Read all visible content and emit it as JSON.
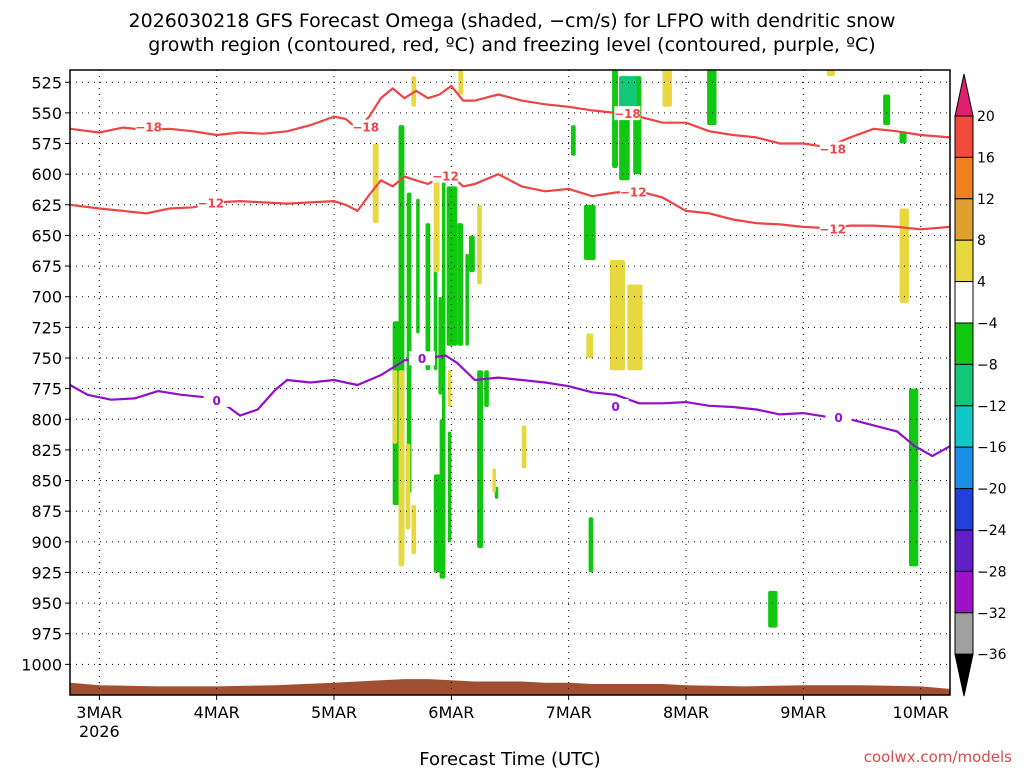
{
  "chart_data": {
    "type": "heatmap",
    "title_lines": [
      "2026030218 GFS Forecast Omega (shaded, −cm/s) for LFPO with dendritic snow",
      "growth region (contoured, red, ºC) and freezing level (contoured, purple, ºC)"
    ],
    "xlabel": "Forecast Time (UTC)",
    "credit": "coolwx.com/models",
    "x_ticks": [
      {
        "day": 3,
        "label": "3MAR",
        "sub": "2026"
      },
      {
        "day": 4,
        "label": "4MAR",
        "sub": ""
      },
      {
        "day": 5,
        "label": "5MAR",
        "sub": ""
      },
      {
        "day": 6,
        "label": "6MAR",
        "sub": ""
      },
      {
        "day": 7,
        "label": "7MAR",
        "sub": ""
      },
      {
        "day": 8,
        "label": "8MAR",
        "sub": ""
      },
      {
        "day": 9,
        "label": "9MAR",
        "sub": ""
      },
      {
        "day": 10,
        "label": "10MAR",
        "sub": ""
      }
    ],
    "xlim": [
      2.75,
      10.25
    ],
    "ylim": [
      1025,
      515
    ],
    "y_ticks": [
      525,
      550,
      575,
      600,
      625,
      650,
      675,
      700,
      725,
      750,
      775,
      800,
      825,
      850,
      875,
      900,
      925,
      950,
      975,
      1000
    ],
    "y_tick_labels": [
      "525",
      "550",
      "575",
      "600",
      "625",
      "650",
      "675",
      "700",
      "725",
      "750",
      "775",
      "800",
      "825",
      "850",
      "875",
      "900",
      "925",
      "950",
      "975",
      "1000"
    ],
    "grid": true,
    "colorbar": {
      "levels": [
        "20",
        "16",
        "12",
        "8",
        "4",
        "−4",
        "−8",
        "−12",
        "−16",
        "−20",
        "−24",
        "−28",
        "−32",
        "−36"
      ],
      "colors": [
        "#e0206e",
        "#f04a3a",
        "#f08020",
        "#e0a030",
        "#e8d840",
        "#ffffff",
        "#10c810",
        "#10c878",
        "#10c8c8",
        "#1890e8",
        "#2040d8",
        "#6020c8",
        "#a010c8",
        "#a0a0a0",
        "#000000"
      ]
    },
    "contours": [
      {
        "level": "−18",
        "color": "#ee4444",
        "x": [
          2.75,
          3.0,
          3.2,
          3.4,
          3.6,
          3.8,
          4.0,
          4.2,
          4.4,
          4.6,
          4.8,
          5.0,
          5.1,
          5.2,
          5.3,
          5.4,
          5.5,
          5.6,
          5.7,
          5.8,
          5.9,
          6.0,
          6.1,
          6.2,
          6.4,
          6.6,
          6.8,
          7.0,
          7.2,
          7.4,
          7.6,
          7.8,
          8.0,
          8.2,
          8.4,
          8.6,
          8.8,
          9.0,
          9.2,
          9.4,
          9.6,
          9.8,
          10.0,
          10.25
        ],
        "y": [
          563,
          566,
          562,
          564,
          563,
          565,
          568,
          566,
          567,
          565,
          560,
          553,
          555,
          563,
          553,
          538,
          530,
          538,
          532,
          538,
          535,
          528,
          540,
          540,
          535,
          540,
          543,
          545,
          548,
          550,
          553,
          558,
          558,
          565,
          568,
          570,
          575,
          575,
          578,
          570,
          563,
          565,
          568,
          570
        ],
        "labels": [
          {
            "x": 3.42,
            "y": 562
          },
          {
            "x": 5.27,
            "y": 562
          },
          {
            "x": 7.5,
            "y": 551
          },
          {
            "x": 9.25,
            "y": 580
          }
        ]
      },
      {
        "level": "−12",
        "color": "#ee4444",
        "x": [
          2.75,
          3.0,
          3.2,
          3.4,
          3.6,
          3.8,
          4.0,
          4.2,
          4.4,
          4.6,
          4.8,
          5.0,
          5.1,
          5.2,
          5.3,
          5.4,
          5.5,
          5.6,
          5.7,
          5.8,
          5.9,
          6.0,
          6.1,
          6.2,
          6.4,
          6.6,
          6.8,
          7.0,
          7.2,
          7.4,
          7.6,
          7.8,
          8.0,
          8.2,
          8.4,
          8.6,
          8.8,
          9.0,
          9.2,
          9.4,
          9.6,
          9.8,
          10.0,
          10.25
        ],
        "y": [
          625,
          628,
          630,
          632,
          628,
          627,
          623,
          622,
          623,
          624,
          623,
          622,
          625,
          630,
          617,
          605,
          610,
          602,
          605,
          608,
          603,
          601,
          610,
          608,
          600,
          610,
          614,
          612,
          618,
          615,
          614,
          619,
          630,
          632,
          637,
          640,
          641,
          643,
          644,
          642,
          642,
          643,
          645,
          643
        ],
        "labels": [
          {
            "x": 3.95,
            "y": 624
          },
          {
            "x": 5.95,
            "y": 602
          },
          {
            "x": 7.55,
            "y": 615
          },
          {
            "x": 9.25,
            "y": 645
          }
        ]
      },
      {
        "level": "0",
        "color": "#9010c8",
        "x": [
          2.75,
          2.9,
          3.1,
          3.3,
          3.5,
          3.7,
          3.9,
          4.0,
          4.1,
          4.2,
          4.35,
          4.5,
          4.6,
          4.8,
          5.0,
          5.2,
          5.4,
          5.5,
          5.6,
          5.8,
          5.95,
          6.05,
          6.2,
          6.4,
          6.6,
          6.8,
          7.0,
          7.2,
          7.4,
          7.6,
          7.8,
          8.0,
          8.2,
          8.4,
          8.6,
          8.8,
          9.0,
          9.2,
          9.4,
          9.6,
          9.8,
          9.95,
          10.1,
          10.25
        ],
        "y": [
          772,
          780,
          784,
          783,
          777,
          780,
          782,
          786,
          790,
          797,
          792,
          776,
          768,
          770,
          768,
          772,
          764,
          758,
          752,
          750,
          748,
          754,
          768,
          766,
          768,
          770,
          773,
          778,
          780,
          787,
          787,
          786,
          789,
          790,
          792,
          796,
          795,
          798,
          800,
          805,
          810,
          822,
          830,
          822
        ],
        "labels": [
          {
            "x": 4.0,
            "y": 785
          },
          {
            "x": 5.75,
            "y": 751
          },
          {
            "x": 7.4,
            "y": 790
          },
          {
            "x": 9.3,
            "y": 799
          }
        ]
      }
    ],
    "shaded_regions": [
      {
        "color": "#10c810",
        "cells": [
          [
            5.55,
            5.6,
            560,
            900
          ],
          [
            5.5,
            5.58,
            720,
            870
          ],
          [
            5.62,
            5.66,
            615,
            860
          ],
          [
            5.7,
            5.73,
            620,
            730
          ],
          [
            5.78,
            5.82,
            640,
            760
          ],
          [
            5.85,
            5.88,
            650,
            760
          ],
          [
            5.89,
            5.92,
            700,
            780
          ],
          [
            5.92,
            5.95,
            600,
            910
          ],
          [
            5.96,
            6.05,
            610,
            740
          ],
          [
            6.05,
            6.1,
            640,
            740
          ],
          [
            6.12,
            6.15,
            665,
            740
          ],
          [
            6.15,
            6.2,
            650,
            680
          ],
          [
            6.22,
            6.27,
            760,
            905
          ],
          [
            5.85,
            5.93,
            845,
            925
          ],
          [
            5.9,
            5.95,
            800,
            930
          ],
          [
            5.97,
            6.0,
            810,
            900
          ],
          [
            6.28,
            6.32,
            760,
            790
          ],
          [
            6.37,
            6.4,
            855,
            865
          ],
          [
            7.02,
            7.06,
            560,
            585
          ],
          [
            7.13,
            7.23,
            625,
            670
          ],
          [
            7.17,
            7.21,
            880,
            925
          ],
          [
            7.37,
            7.42,
            515,
            595
          ],
          [
            7.43,
            7.52,
            520,
            605
          ],
          [
            7.55,
            7.62,
            520,
            600
          ],
          [
            8.18,
            8.26,
            515,
            560
          ],
          [
            8.7,
            8.78,
            940,
            970
          ],
          [
            9.68,
            9.74,
            535,
            560
          ],
          [
            9.82,
            9.88,
            565,
            575
          ],
          [
            9.9,
            9.98,
            775,
            920
          ]
        ]
      },
      {
        "color": "#10c878",
        "cells": [
          [
            7.43,
            7.58,
            520,
            555
          ]
        ]
      },
      {
        "color": "#e8d840",
        "cells": [
          [
            5.33,
            5.38,
            575,
            640
          ],
          [
            5.5,
            5.54,
            760,
            820
          ],
          [
            5.55,
            5.6,
            760,
            920
          ],
          [
            5.61,
            5.65,
            820,
            890
          ],
          [
            5.66,
            5.7,
            870,
            910
          ],
          [
            5.66,
            5.7,
            520,
            545
          ],
          [
            5.85,
            5.9,
            600,
            680
          ],
          [
            5.97,
            6.0,
            760,
            790
          ],
          [
            6.06,
            6.1,
            515,
            535
          ],
          [
            6.22,
            6.26,
            625,
            690
          ],
          [
            6.35,
            6.38,
            840,
            860
          ],
          [
            6.6,
            6.64,
            805,
            840
          ],
          [
            7.15,
            7.21,
            730,
            750
          ],
          [
            7.35,
            7.48,
            670,
            760
          ],
          [
            7.5,
            7.63,
            690,
            760
          ],
          [
            7.8,
            7.88,
            515,
            545
          ],
          [
            9.2,
            9.27,
            515,
            520
          ],
          [
            9.82,
            9.9,
            628,
            705
          ]
        ]
      }
    ],
    "terrain": {
      "color": "#a05030",
      "x": [
        2.75,
        3.0,
        3.5,
        4.0,
        4.5,
        5.0,
        5.2,
        5.4,
        5.6,
        5.8,
        6.0,
        6.2,
        6.4,
        6.6,
        6.8,
        7.0,
        7.2,
        7.4,
        7.6,
        7.8,
        8.0,
        8.5,
        9.0,
        9.5,
        10.0,
        10.25
      ],
      "y": [
        1015,
        1017,
        1018,
        1018,
        1017,
        1015,
        1014,
        1013,
        1012,
        1012,
        1013,
        1014,
        1014,
        1014,
        1015,
        1015,
        1016,
        1016,
        1016,
        1016,
        1017,
        1018,
        1017,
        1017,
        1018,
        1020
      ]
    }
  }
}
